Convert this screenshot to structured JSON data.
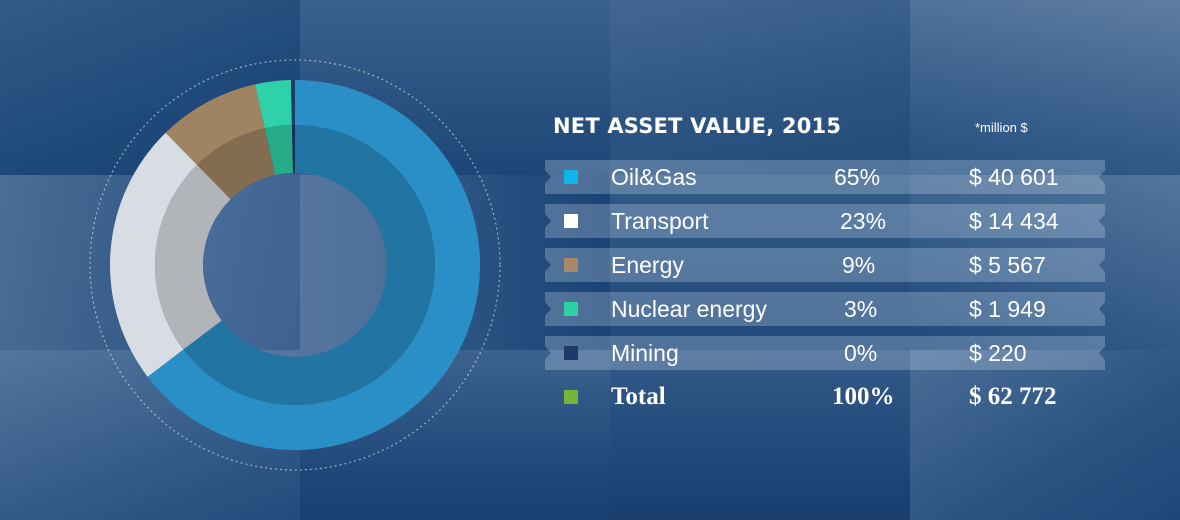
{
  "title": "NET ASSET VALUE, 2015",
  "note": "*million $",
  "rows": [
    {
      "label": "Oil&Gas",
      "pct": "65%",
      "value": "$  40 601",
      "color": "#0fb5e8"
    },
    {
      "label": "Transport",
      "pct": "23%",
      "value": "$ 14 434",
      "color": "#ffffff"
    },
    {
      "label": "Energy",
      "pct": "9%",
      "value": "$   5 567",
      "color": "#a88865"
    },
    {
      "label": "Nuclear energy",
      "pct": "3%",
      "value": "$ 1 949",
      "color": "#2fd0a4"
    },
    {
      "label": "Mining",
      "pct": "0%",
      "value": "$ 220",
      "color": "#1d3a6b"
    }
  ],
  "total": {
    "label": "Total",
    "pct": "100%",
    "value": "$  62 772",
    "color": "#77b53a"
  },
  "chart_data": {
    "type": "pie",
    "labels": [
      "Oil&Gas",
      "Transport",
      "Energy",
      "Nuclear energy",
      "Mining"
    ],
    "values": [
      40601,
      14434,
      5567,
      1949,
      220
    ],
    "percents": [
      65,
      23,
      9,
      3,
      0
    ],
    "total": 62772,
    "colors": [
      "#2a8fc7",
      "#d8dde3",
      "#a08462",
      "#2fd2a8",
      "#1d3a6b"
    ]
  }
}
